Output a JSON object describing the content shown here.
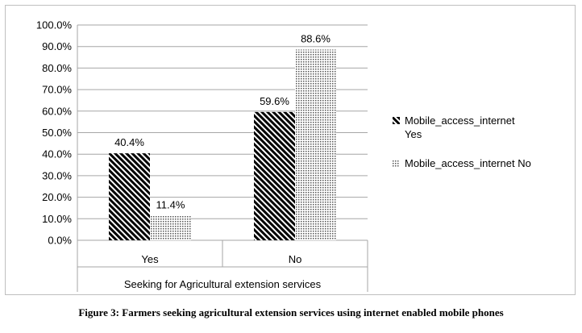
{
  "caption": "Figure 3: Farmers seeking agricultural extension services using internet enabled mobile phones",
  "chart_data": {
    "type": "bar",
    "categories": [
      "Yes",
      "No"
    ],
    "category_group_label": "Seeking for Agricultural extension services",
    "series": [
      {
        "name": "Mobile_access_internet Yes",
        "values": [
          40.4,
          59.6
        ],
        "labels": [
          "40.4%",
          "59.6%"
        ],
        "pattern": "diagonal-hatch",
        "color": "#000000"
      },
      {
        "name": "Mobile_access_internet No",
        "values": [
          11.4,
          88.6
        ],
        "labels": [
          "11.4%",
          "88.6%"
        ],
        "pattern": "dotted",
        "color": "#808080"
      }
    ],
    "y_ticks": [
      "0.0%",
      "10.0%",
      "20.0%",
      "30.0%",
      "40.0%",
      "50.0%",
      "60.0%",
      "70.0%",
      "80.0%",
      "90.0%",
      "100.0%"
    ],
    "ylim": [
      0,
      100
    ],
    "grid": true,
    "legend_position": "right"
  }
}
